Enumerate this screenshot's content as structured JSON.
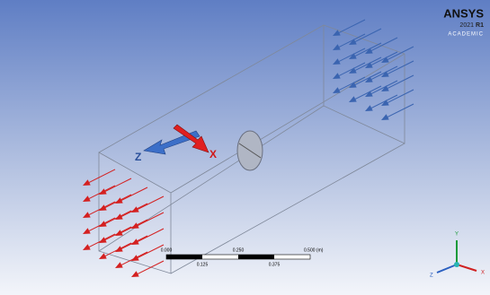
{
  "logo": {
    "brand": "ANSYS",
    "version": "2021",
    "release": "R1",
    "edition": "ACADEMIC"
  },
  "viewport": {
    "axis_labels": {
      "z": "Z",
      "x": "X"
    },
    "scale_bar": {
      "top_labels": [
        "0.000",
        "0.250",
        "0.500 (m)"
      ],
      "bottom_labels": [
        "0.125",
        "0.375"
      ]
    },
    "triad": {
      "y": "Y",
      "x": "X",
      "z": "Z"
    }
  }
}
